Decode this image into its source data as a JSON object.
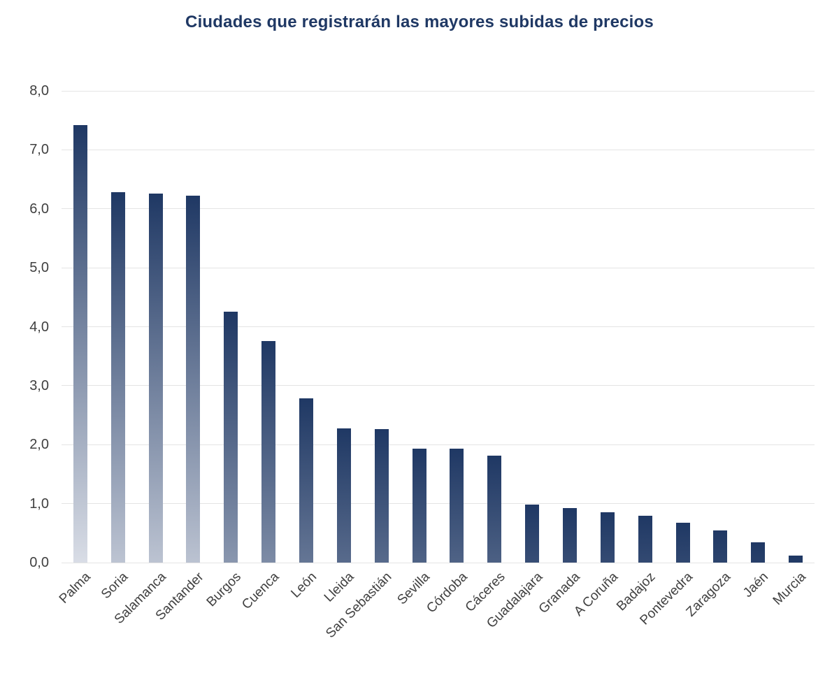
{
  "title": "Ciudades que registrarán las mayores subidas de precios",
  "chart_data": {
    "type": "bar",
    "title": "Ciudades que registrarán las mayores subidas de precios",
    "categories": [
      "Palma",
      "Soria",
      "Salamanca",
      "Santander",
      "Burgos",
      "Cuenca",
      "León",
      "Lleida",
      "San Sebastián",
      "Sevilla",
      "Córdoba",
      "Cáceres",
      "Guadalajara",
      "Granada",
      "A Coruña",
      "Badajoz",
      "Pontevedra",
      "Zaragoza",
      "Jaén",
      "Murcia"
    ],
    "values": [
      7.42,
      6.28,
      6.26,
      6.22,
      4.25,
      3.76,
      2.78,
      2.28,
      2.26,
      1.93,
      1.93,
      1.81,
      0.98,
      0.92,
      0.85,
      0.79,
      0.68,
      0.55,
      0.34,
      0.12
    ],
    "xlabel": "",
    "ylabel": "",
    "ylim": [
      0,
      8
    ],
    "ytick_step": 1,
    "ytick_labels": [
      "0,0",
      "1,0",
      "2,0",
      "3,0",
      "4,0",
      "5,0",
      "6,0",
      "7,0",
      "8,0"
    ],
    "decimal_separator": ",",
    "grid": true,
    "legend": false
  },
  "colors": {
    "title_text": "#1f3864",
    "bar_top": "#1f3864",
    "bar_bottom": "#e3e6ed",
    "gridline": "#e4e4e4",
    "axis_text": "#404040",
    "background": "#ffffff"
  }
}
